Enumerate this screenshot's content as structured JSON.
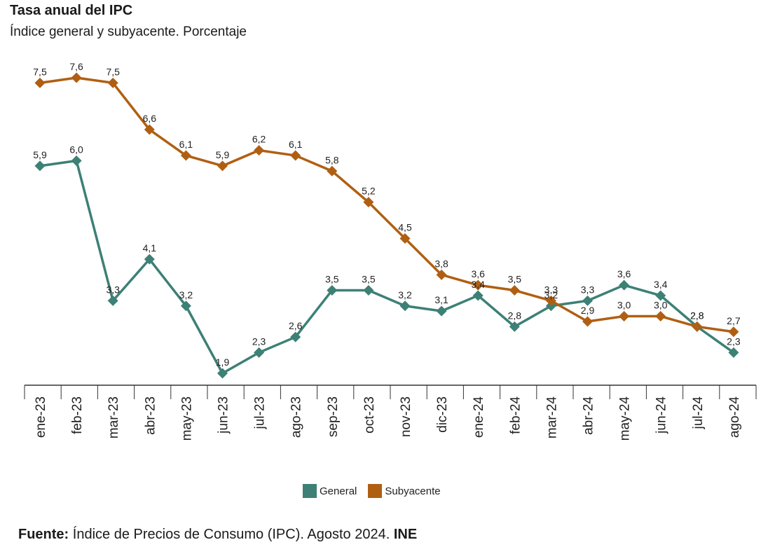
{
  "colors": {
    "general": "#3d8076",
    "subyacente": "#b05f12",
    "axis": "#333333"
  },
  "chart_data": {
    "type": "line",
    "title": "Tasa anual del IPC",
    "subtitle": "Índice general y subyacente. Porcentaje",
    "categories": [
      "ene-23",
      "feb-23",
      "mar-23",
      "abr-23",
      "may-23",
      "jun-23",
      "jul-23",
      "ago-23",
      "sep-23",
      "oct-23",
      "nov-23",
      "dic-23",
      "ene-24",
      "feb-24",
      "mar-24",
      "abr-24",
      "may-24",
      "jun-24",
      "jul-24",
      "ago-24"
    ],
    "series": [
      {
        "name": "General",
        "values": [
          5.9,
          6.0,
          3.3,
          4.1,
          3.2,
          1.9,
          2.3,
          2.6,
          3.5,
          3.5,
          3.2,
          3.1,
          3.4,
          2.8,
          3.2,
          3.3,
          3.6,
          3.4,
          2.8,
          2.3
        ],
        "labels": [
          "5,9",
          "6,0",
          "3,3",
          "4,1",
          "3,2",
          "1,9",
          "2,3",
          "2,6",
          "3,5",
          "3,5",
          "3,2",
          "3,1",
          "3,4",
          "2,8",
          "3,2",
          "3,3",
          "3,6",
          "3,4",
          "2,8",
          "2,3"
        ]
      },
      {
        "name": "Subyacente",
        "values": [
          7.5,
          7.6,
          7.5,
          6.6,
          6.1,
          5.9,
          6.2,
          6.1,
          5.8,
          5.2,
          4.5,
          3.8,
          3.6,
          3.5,
          3.3,
          2.9,
          3.0,
          3.0,
          2.8,
          2.7
        ],
        "labels": [
          "7,5",
          "7,6",
          "7,5",
          "6,6",
          "6,1",
          "5,9",
          "6,2",
          "6,1",
          "5,8",
          "5,2",
          "4,5",
          "3,8",
          "3,6",
          "3,5",
          "3,3",
          "2,9",
          "3,0",
          "3,0",
          "2,8",
          "2,7"
        ]
      }
    ],
    "ylim": [
      1.9,
      7.6
    ],
    "xlabel": "",
    "ylabel": "",
    "grid": false,
    "legend_position": "bottom-center"
  },
  "legend": {
    "general_label": "General",
    "subyacente_label": "Subyacente"
  },
  "source": {
    "label": "Fuente:",
    "text": " Índice de Precios de Consumo (IPC).  Agosto 2024. ",
    "org": "INE"
  }
}
